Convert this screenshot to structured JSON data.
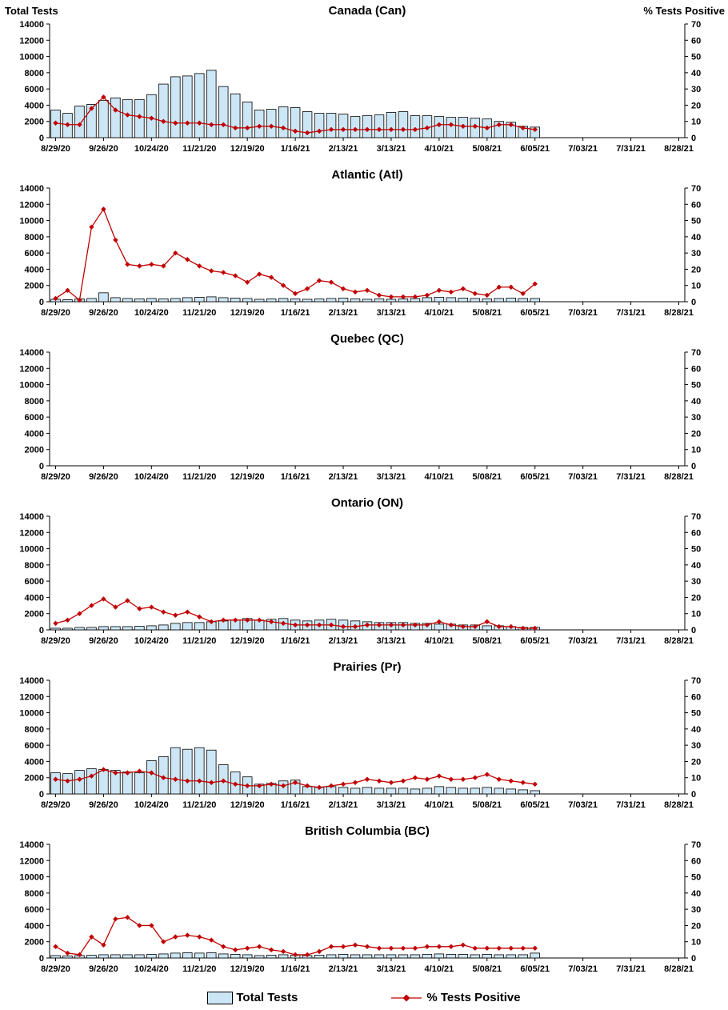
{
  "axis": {
    "left_title": "Total Tests",
    "right_title": "% Tests Positive",
    "y_left_ticks": [
      0,
      2000,
      4000,
      6000,
      8000,
      10000,
      12000,
      14000
    ],
    "y_right_ticks": [
      0,
      10,
      20,
      30,
      40,
      50,
      60,
      70
    ],
    "y_left_max": 14000,
    "y_right_max": 70,
    "x_tick_labels": [
      "8/29/20",
      "9/26/20",
      "10/24/20",
      "11/21/20",
      "12/19/20",
      "1/16/21",
      "2/13/21",
      "3/13/21",
      "4/10/21",
      "5/08/21",
      "6/05/21",
      "7/03/21",
      "7/31/21",
      "8/28/21"
    ],
    "weeks_per_tick": 4,
    "total_week_slots": 53
  },
  "week_dates": [
    "8/29/20",
    "9/05/20",
    "9/12/20",
    "9/19/20",
    "9/26/20",
    "10/03/20",
    "10/10/20",
    "10/17/20",
    "10/24/20",
    "10/31/20",
    "11/07/20",
    "11/14/20",
    "11/21/20",
    "11/28/20",
    "12/05/20",
    "12/12/20",
    "12/19/20",
    "12/26/20",
    "1/02/21",
    "1/09/21",
    "1/16/21",
    "1/23/21",
    "1/30/21",
    "2/06/21",
    "2/13/21",
    "2/20/21",
    "2/27/21",
    "3/06/21",
    "3/13/21",
    "3/20/21",
    "3/27/21",
    "4/03/21",
    "4/10/21",
    "4/17/21",
    "4/24/21",
    "5/01/21",
    "5/08/21",
    "5/15/21",
    "5/22/21",
    "5/29/21",
    "6/05/21"
  ],
  "chart_data": [
    {
      "id": "canada",
      "type": "bar+line",
      "title": "Canada (Can)",
      "series": [
        {
          "name": "Total Tests",
          "axis": "left",
          "values": [
            3400,
            3000,
            3900,
            4100,
            4600,
            4900,
            4700,
            4700,
            5300,
            6600,
            7500,
            7600,
            7900,
            8300,
            6300,
            5400,
            4400,
            3400,
            3500,
            3800,
            3700,
            3200,
            3000,
            3000,
            2900,
            2600,
            2700,
            2800,
            3100,
            3200,
            2700,
            2700,
            2600,
            2500,
            2500,
            2400,
            2300,
            2000,
            1900,
            1400,
            1300
          ]
        },
        {
          "name": "% Tests Positive",
          "axis": "right",
          "values": [
            9,
            8,
            8,
            18,
            25,
            17,
            14,
            13,
            12,
            10,
            9,
            9,
            9,
            8,
            8,
            6,
            6,
            7,
            7,
            6,
            4,
            3,
            4,
            5,
            5,
            5,
            5,
            5,
            5,
            5,
            5,
            6,
            8,
            8,
            7,
            7,
            6,
            8,
            8,
            6,
            5
          ]
        }
      ]
    },
    {
      "id": "atlantic",
      "type": "bar+line",
      "title": "Atlantic (Atl)",
      "series": [
        {
          "name": "Total Tests",
          "axis": "left",
          "values": [
            300,
            250,
            350,
            400,
            1100,
            500,
            400,
            350,
            400,
            350,
            400,
            500,
            550,
            600,
            500,
            450,
            400,
            300,
            350,
            400,
            350,
            300,
            350,
            400,
            450,
            350,
            300,
            350,
            300,
            350,
            400,
            500,
            550,
            500,
            450,
            400,
            350,
            400,
            450,
            400,
            400
          ]
        },
        {
          "name": "% Tests Positive",
          "axis": "right",
          "values": [
            2,
            7,
            1,
            46,
            57,
            38,
            23,
            22,
            23,
            22,
            30,
            26,
            22,
            19,
            18,
            16,
            12,
            17,
            15,
            10,
            5,
            8,
            13,
            12,
            8,
            6,
            7,
            4,
            3,
            3,
            3,
            4,
            7,
            6,
            8,
            5,
            4,
            9,
            9,
            5,
            11
          ]
        }
      ]
    },
    {
      "id": "quebec",
      "type": "bar+line",
      "title": "Quebec (QC)",
      "series": [
        {
          "name": "Total Tests",
          "axis": "left",
          "values": []
        },
        {
          "name": "% Tests Positive",
          "axis": "right",
          "values": []
        }
      ]
    },
    {
      "id": "ontario",
      "type": "bar+line",
      "title": "Ontario (ON)",
      "series": [
        {
          "name": "Total Tests",
          "axis": "left",
          "values": [
            200,
            200,
            300,
            300,
            400,
            400,
            400,
            450,
            500,
            600,
            800,
            900,
            900,
            1000,
            1100,
            1200,
            1400,
            1200,
            1300,
            1400,
            1200,
            1100,
            1200,
            1300,
            1200,
            1100,
            1000,
            900,
            900,
            900,
            800,
            800,
            700,
            700,
            600,
            600,
            500,
            500,
            400,
            300,
            300
          ]
        },
        {
          "name": "% Tests Positive",
          "axis": "right",
          "values": [
            4,
            6,
            10,
            15,
            19,
            14,
            18,
            13,
            14,
            11,
            9,
            11,
            8,
            5,
            6,
            6,
            6,
            6,
            5,
            4,
            3,
            3,
            3,
            3,
            2,
            2,
            3,
            3,
            3,
            3,
            3,
            3,
            5,
            3,
            2,
            2,
            5,
            2,
            2,
            1,
            1
          ]
        }
      ]
    },
    {
      "id": "prairies",
      "type": "bar+line",
      "title": "Prairies (Pr)",
      "series": [
        {
          "name": "Total Tests",
          "axis": "left",
          "values": [
            2600,
            2500,
            2900,
            3100,
            3000,
            2900,
            2700,
            2600,
            4100,
            4600,
            5700,
            5500,
            5700,
            5400,
            3600,
            2700,
            2100,
            1200,
            1300,
            1600,
            1700,
            900,
            800,
            900,
            800,
            700,
            800,
            700,
            700,
            700,
            600,
            700,
            900,
            800,
            700,
            700,
            800,
            700,
            600,
            500,
            400
          ]
        },
        {
          "name": "% Tests Positive",
          "axis": "right",
          "values": [
            9,
            8,
            9,
            11,
            15,
            13,
            13,
            14,
            13,
            10,
            9,
            8,
            8,
            7,
            8,
            6,
            5,
            5,
            6,
            5,
            7,
            5,
            4,
            5,
            6,
            7,
            9,
            8,
            7,
            8,
            10,
            9,
            11,
            9,
            9,
            10,
            12,
            9,
            8,
            7,
            6
          ]
        }
      ]
    },
    {
      "id": "bc",
      "type": "bar+line",
      "title": "British Columbia (BC)",
      "series": [
        {
          "name": "Total Tests",
          "axis": "left",
          "values": [
            300,
            250,
            300,
            350,
            400,
            400,
            400,
            400,
            450,
            500,
            600,
            650,
            600,
            650,
            500,
            450,
            400,
            300,
            350,
            400,
            350,
            300,
            350,
            400,
            450,
            400,
            400,
            400,
            400,
            400,
            400,
            450,
            500,
            450,
            450,
            400,
            450,
            400,
            400,
            400,
            600
          ]
        },
        {
          "name": "% Tests Positive",
          "axis": "right",
          "values": [
            7,
            3,
            2,
            13,
            8,
            24,
            25,
            20,
            20,
            10,
            13,
            14,
            13,
            11,
            7,
            5,
            6,
            7,
            5,
            4,
            2,
            2,
            4,
            7,
            7,
            8,
            7,
            6,
            6,
            6,
            6,
            7,
            7,
            7,
            8,
            6,
            6,
            6,
            6,
            6,
            6
          ]
        }
      ]
    }
  ],
  "legend": {
    "bar_label": "Total Tests",
    "line_label": "% Tests Positive"
  },
  "colors": {
    "bar_fill": "#cce6f5",
    "bar_stroke": "#000000",
    "line": "#c00000",
    "axis": "#000000"
  }
}
